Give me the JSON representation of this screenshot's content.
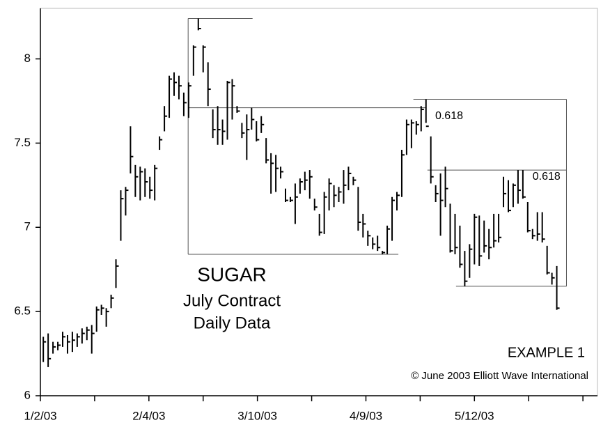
{
  "chart_data": {
    "type": "ohlc",
    "title": "SUGAR",
    "subtitle": [
      "July Contract",
      "Daily Data"
    ],
    "annotations": [
      "EXAMPLE 1",
      "© June 2003 Elliott Wave International"
    ],
    "x": [
      0,
      1,
      2,
      3,
      4,
      5,
      6,
      7,
      8,
      9,
      10,
      11,
      12,
      13,
      14,
      15,
      16,
      17,
      18,
      19,
      20,
      21,
      22,
      23,
      24,
      25,
      26,
      27,
      28,
      29,
      30,
      31,
      32,
      33,
      34,
      35,
      36,
      37,
      38,
      39,
      40,
      41,
      42,
      43,
      44,
      45,
      46,
      47,
      48,
      49,
      50,
      51,
      52,
      53,
      54,
      55,
      56,
      57,
      58,
      59,
      60,
      61,
      62,
      63,
      64,
      65,
      66,
      67,
      68,
      69,
      70,
      71,
      72,
      73,
      74,
      75,
      76,
      77,
      78,
      79,
      80,
      81,
      82,
      83,
      84,
      85,
      86,
      87,
      88,
      89,
      90,
      91,
      92,
      93,
      94,
      95,
      96,
      97,
      98,
      99,
      100,
      101,
      102,
      103,
      104,
      105,
      106
    ],
    "high": [
      6.35,
      6.37,
      6.32,
      6.32,
      6.38,
      6.36,
      6.38,
      6.37,
      6.4,
      6.41,
      6.42,
      6.53,
      6.54,
      6.52,
      6.6,
      6.81,
      7.22,
      7.24,
      7.6,
      7.37,
      7.36,
      7.35,
      7.3,
      7.37,
      7.54,
      7.72,
      7.9,
      7.92,
      7.9,
      7.8,
      7.86,
      8.08,
      8.24,
      8.08,
      7.98,
      7.7,
      7.72,
      7.64,
      7.87,
      7.88,
      7.72,
      7.62,
      7.67,
      7.71,
      7.63,
      7.66,
      7.53,
      7.44,
      7.43,
      7.36,
      7.23,
      7.18,
      7.26,
      7.29,
      7.33,
      7.34,
      7.17,
      7.08,
      7.21,
      7.29,
      7.25,
      7.24,
      7.34,
      7.36,
      7.3,
      7.24,
      7.08,
      6.98,
      6.94,
      6.95,
      6.86,
      7.01,
      7.18,
      7.21,
      7.46,
      7.64,
      7.64,
      7.63,
      7.72,
      7.76,
      7.54,
      7.25,
      7.32,
      7.36,
      7.14,
      7.08,
      7.01,
      6.86,
      6.9,
      7.08,
      7.07,
      7.04,
      6.99,
      7.08,
      7.08,
      7.3,
      7.28,
      7.26,
      7.34,
      7.34,
      7.15,
      6.99,
      7.09,
      7.09,
      6.89,
      6.73,
      6.77
    ],
    "low": [
      6.2,
      6.17,
      6.25,
      6.27,
      6.29,
      6.25,
      6.26,
      6.29,
      6.31,
      6.33,
      6.25,
      6.38,
      6.48,
      6.41,
      6.52,
      6.64,
      6.92,
      7.07,
      7.32,
      7.18,
      7.16,
      7.18,
      7.17,
      7.16,
      7.46,
      7.57,
      7.65,
      7.78,
      7.76,
      7.66,
      7.65,
      7.9,
      8.17,
      7.92,
      7.72,
      7.53,
      7.49,
      7.49,
      7.52,
      7.64,
      7.68,
      7.53,
      7.4,
      7.58,
      7.51,
      7.56,
      7.38,
      7.2,
      7.21,
      7.29,
      7.15,
      7.15,
      7.02,
      7.2,
      7.22,
      7.17,
      7.1,
      6.95,
      6.96,
      7.1,
      7.12,
      7.15,
      7.14,
      7.22,
      7.25,
      6.98,
      6.94,
      6.89,
      6.87,
      6.86,
      6.84,
      6.84,
      6.92,
      7.1,
      7.18,
      7.43,
      7.47,
      7.55,
      7.57,
      7.62,
      7.26,
      7.15,
      6.95,
      7.12,
      6.85,
      6.84,
      6.76,
      6.65,
      6.7,
      6.78,
      6.77,
      6.85,
      6.81,
      6.88,
      6.91,
      7.12,
      7.09,
      7.12,
      7.14,
      7.17,
      6.97,
      6.93,
      6.92,
      6.91,
      6.72,
      6.66,
      6.51
    ],
    "close": [
      6.32,
      6.22,
      6.29,
      6.3,
      6.35,
      6.32,
      6.33,
      6.35,
      6.37,
      6.39,
      6.37,
      6.51,
      6.52,
      6.5,
      6.58,
      6.77,
      7.17,
      7.22,
      7.42,
      7.3,
      7.33,
      7.27,
      7.22,
      7.35,
      7.52,
      7.66,
      7.88,
      7.86,
      7.84,
      7.74,
      7.84,
      8.07,
      8.18,
      8.07,
      7.82,
      7.58,
      7.58,
      7.57,
      7.86,
      7.84,
      7.69,
      7.56,
      7.58,
      7.64,
      7.52,
      7.61,
      7.4,
      7.38,
      7.35,
      7.33,
      7.16,
      7.16,
      7.18,
      7.27,
      7.28,
      7.3,
      7.12,
      6.97,
      7.18,
      7.26,
      7.19,
      7.21,
      7.25,
      7.32,
      7.28,
      7.03,
      7.02,
      6.95,
      6.9,
      6.88,
      6.85,
      6.99,
      7.16,
      7.19,
      7.43,
      7.61,
      7.62,
      7.61,
      7.7,
      7.6,
      7.3,
      7.2,
      7.16,
      7.23,
      6.86,
      6.88,
      6.78,
      6.68,
      6.87,
      7.06,
      6.83,
      6.89,
      6.88,
      6.92,
      6.94,
      7.2,
      7.1,
      7.25,
      7.22,
      7.18,
      6.98,
      6.95,
      6.96,
      6.93,
      6.73,
      6.7,
      6.52
    ],
    "color": "#000000",
    "xlim": [
      -0.6,
      114.4
    ],
    "xticks": [
      {
        "value": -0.6,
        "label": "1/2/03"
      },
      {
        "value": 21.8,
        "label": "2/4/03"
      },
      {
        "value": 44.2,
        "label": "3/10/03"
      },
      {
        "value": 66.6,
        "label": "4/9/03"
      },
      {
        "value": 89,
        "label": "5/12/03"
      }
    ],
    "xminorticks": [
      10.6,
      33,
      55.4,
      77.8,
      100.2,
      111.4
    ],
    "ylim": [
      6,
      8.3
    ],
    "yticks": [
      6,
      6.5,
      7,
      7.5,
      8
    ],
    "guides": [
      {
        "x": [
          29.9,
          43.2
        ],
        "y": [
          8.24,
          8.24
        ]
      },
      {
        "x": [
          29.9,
          29.9
        ],
        "y": [
          8.24,
          6.84
        ]
      },
      {
        "x": [
          29.9,
          79.0
        ],
        "y": [
          7.71,
          7.71
        ]
      },
      {
        "x": [
          29.9,
          73.3
        ],
        "y": [
          6.84,
          6.84
        ]
      },
      {
        "x": [
          76.4,
          108.0
        ],
        "y": [
          7.76,
          7.76
        ]
      },
      {
        "x": [
          108.0,
          108.0
        ],
        "y": [
          7.76,
          6.65
        ]
      },
      {
        "x": [
          79.3,
          108.0
        ],
        "y": [
          7.34,
          7.34
        ]
      },
      {
        "x": [
          85.2,
          108.0
        ],
        "y": [
          6.65,
          6.65
        ]
      }
    ],
    "guide_labels": [
      {
        "x": 80.9,
        "y": 7.66,
        "label": "0.618"
      },
      {
        "x": 101.0,
        "y": 7.3,
        "label": "0.618"
      }
    ]
  }
}
